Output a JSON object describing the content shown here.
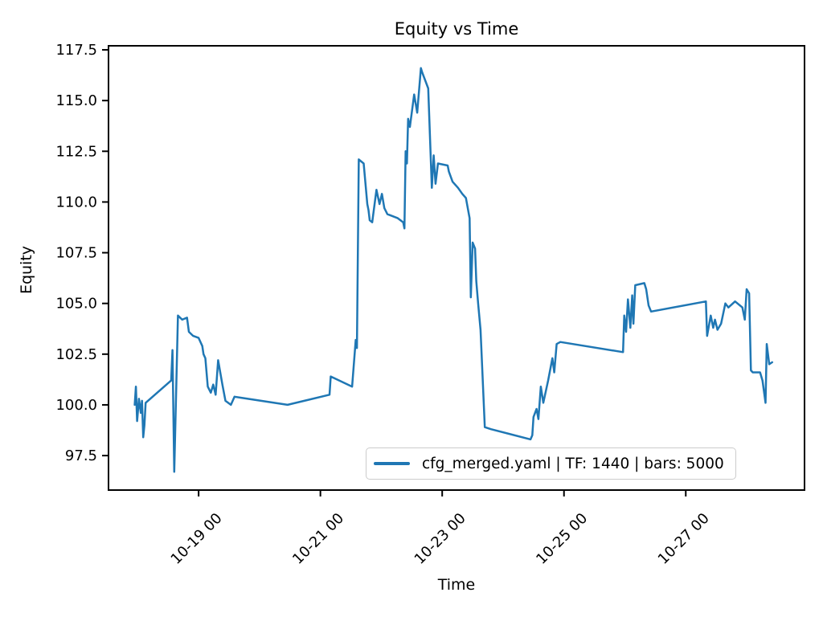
{
  "chart_data": {
    "type": "line",
    "title": "Equity vs Time",
    "xlabel": "Time",
    "ylabel": "Equity",
    "legend": {
      "position": "lower right",
      "entries": [
        "cfg_merged.yaml | TF: 1440 | bars: 5000"
      ]
    },
    "grid": false,
    "colors": {
      "line": "#1f77b4",
      "text": "#000000",
      "axes": "#000000",
      "legend_edge": "#cccccc",
      "background": "#ffffff"
    },
    "x_unit": "days since 10-18 00:00 (labels show month-day hour)",
    "xlim": [
      -0.48,
      10.95
    ],
    "ylim": [
      95.8,
      117.7
    ],
    "x_ticks": [
      {
        "t": 1,
        "label": "10-19 00"
      },
      {
        "t": 3,
        "label": "10-21 00"
      },
      {
        "t": 5,
        "label": "10-23 00"
      },
      {
        "t": 7,
        "label": "10-25 00"
      },
      {
        "t": 9,
        "label": "10-27 00"
      }
    ],
    "y_ticks": [
      97.5,
      100.0,
      102.5,
      105.0,
      107.5,
      110.0,
      112.5,
      115.0,
      117.5
    ],
    "x_tick_rotation_deg": 45,
    "series": [
      {
        "name": "cfg_merged.yaml | TF: 1440 | bars: 5000",
        "points": [
          [
            -0.05,
            100.0
          ],
          [
            -0.03,
            100.9
          ],
          [
            -0.01,
            99.2
          ],
          [
            0.02,
            100.3
          ],
          [
            0.05,
            99.6
          ],
          [
            0.07,
            100.2
          ],
          [
            0.09,
            98.4
          ],
          [
            0.11,
            99.0
          ],
          [
            0.13,
            100.1
          ],
          [
            0.55,
            101.2
          ],
          [
            0.57,
            102.7
          ],
          [
            0.6,
            96.7
          ],
          [
            0.66,
            104.4
          ],
          [
            0.73,
            104.2
          ],
          [
            0.81,
            104.3
          ],
          [
            0.84,
            103.6
          ],
          [
            0.91,
            103.4
          ],
          [
            1.0,
            103.3
          ],
          [
            1.06,
            102.9
          ],
          [
            1.08,
            102.5
          ],
          [
            1.11,
            102.3
          ],
          [
            1.15,
            100.9
          ],
          [
            1.2,
            100.6
          ],
          [
            1.24,
            101.0
          ],
          [
            1.28,
            100.5
          ],
          [
            1.32,
            102.2
          ],
          [
            1.39,
            101.0
          ],
          [
            1.44,
            100.2
          ],
          [
            1.53,
            100.0
          ],
          [
            1.59,
            100.4
          ],
          [
            1.7,
            100.35
          ],
          [
            2.46,
            100.0
          ],
          [
            3.15,
            100.5
          ],
          [
            3.17,
            101.4
          ],
          [
            3.52,
            100.9
          ],
          [
            3.58,
            103.2
          ],
          [
            3.6,
            102.8
          ],
          [
            3.63,
            112.1
          ],
          [
            3.71,
            111.9
          ],
          [
            3.77,
            109.9
          ],
          [
            3.79,
            109.6
          ],
          [
            3.81,
            109.1
          ],
          [
            3.85,
            109.0
          ],
          [
            3.92,
            110.6
          ],
          [
            3.97,
            109.9
          ],
          [
            4.01,
            110.4
          ],
          [
            4.05,
            109.7
          ],
          [
            4.1,
            109.4
          ],
          [
            4.27,
            109.2
          ],
          [
            4.36,
            109.0
          ],
          [
            4.38,
            108.7
          ],
          [
            4.4,
            112.5
          ],
          [
            4.42,
            111.9
          ],
          [
            4.44,
            114.1
          ],
          [
            4.47,
            113.7
          ],
          [
            4.54,
            115.3
          ],
          [
            4.59,
            114.4
          ],
          [
            4.65,
            116.6
          ],
          [
            4.67,
            116.4
          ],
          [
            4.77,
            115.6
          ],
          [
            4.83,
            110.7
          ],
          [
            4.86,
            112.3
          ],
          [
            4.89,
            110.9
          ],
          [
            4.93,
            111.9
          ],
          [
            5.09,
            111.8
          ],
          [
            5.11,
            111.5
          ],
          [
            5.17,
            111.0
          ],
          [
            5.26,
            110.7
          ],
          [
            5.33,
            110.4
          ],
          [
            5.39,
            110.2
          ],
          [
            5.45,
            109.2
          ],
          [
            5.47,
            105.3
          ],
          [
            5.5,
            108.0
          ],
          [
            5.54,
            107.7
          ],
          [
            5.56,
            106.1
          ],
          [
            5.59,
            105.0
          ],
          [
            5.63,
            103.7
          ],
          [
            5.7,
            98.9
          ],
          [
            5.8,
            98.8
          ],
          [
            6.45,
            98.3
          ],
          [
            6.48,
            98.5
          ],
          [
            6.5,
            99.4
          ],
          [
            6.55,
            99.8
          ],
          [
            6.58,
            99.3
          ],
          [
            6.62,
            100.9
          ],
          [
            6.66,
            100.1
          ],
          [
            6.74,
            101.2
          ],
          [
            6.81,
            102.3
          ],
          [
            6.84,
            101.6
          ],
          [
            6.88,
            103.0
          ],
          [
            6.94,
            103.1
          ],
          [
            7.97,
            102.6
          ],
          [
            7.99,
            104.4
          ],
          [
            8.02,
            103.6
          ],
          [
            8.05,
            105.2
          ],
          [
            8.09,
            103.8
          ],
          [
            8.12,
            105.4
          ],
          [
            8.14,
            104.0
          ],
          [
            8.17,
            105.9
          ],
          [
            8.32,
            106.0
          ],
          [
            8.35,
            105.7
          ],
          [
            8.39,
            104.9
          ],
          [
            8.43,
            104.6
          ],
          [
            9.33,
            105.1
          ],
          [
            9.35,
            103.4
          ],
          [
            9.41,
            104.4
          ],
          [
            9.45,
            103.8
          ],
          [
            9.48,
            104.2
          ],
          [
            9.52,
            103.7
          ],
          [
            9.58,
            104.0
          ],
          [
            9.65,
            105.0
          ],
          [
            9.7,
            104.8
          ],
          [
            9.81,
            105.1
          ],
          [
            9.93,
            104.8
          ],
          [
            9.97,
            104.2
          ],
          [
            10.0,
            105.7
          ],
          [
            10.04,
            105.5
          ],
          [
            10.07,
            101.7
          ],
          [
            10.1,
            101.6
          ],
          [
            10.22,
            101.6
          ],
          [
            10.26,
            101.2
          ],
          [
            10.31,
            100.1
          ],
          [
            10.33,
            103.0
          ],
          [
            10.37,
            102.0
          ],
          [
            10.42,
            102.1
          ]
        ]
      }
    ]
  }
}
